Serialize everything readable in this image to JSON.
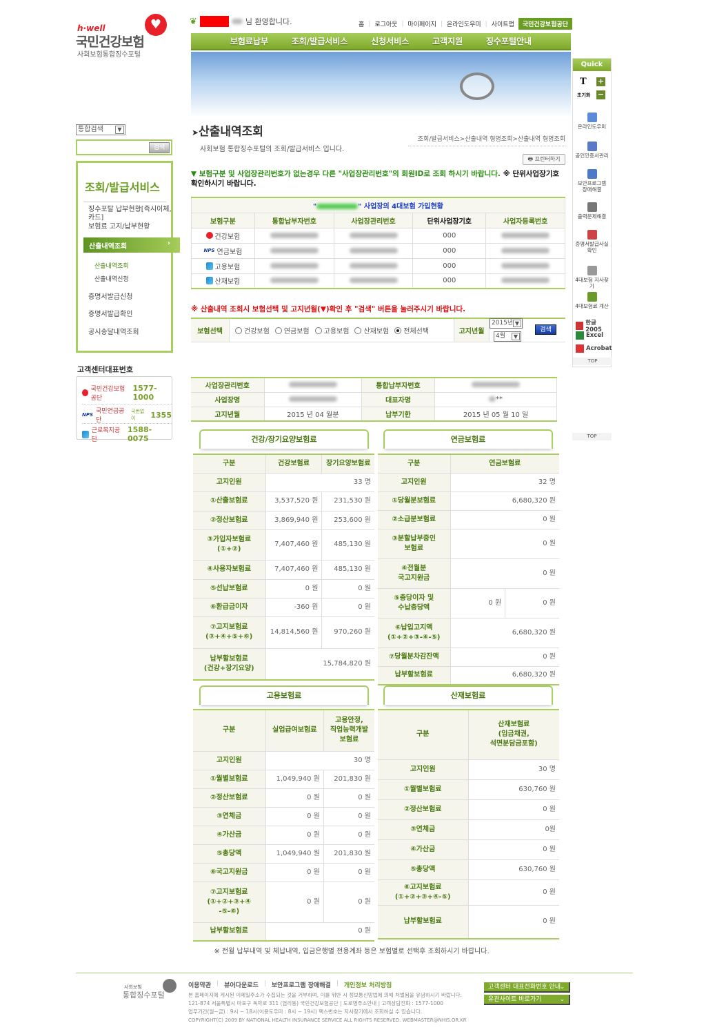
{
  "logo": {
    "hwell": "h·well",
    "main": "국민건강보험",
    "sub": "사회보험통합징수포털"
  },
  "header": {
    "welcome": "님 환영합니다.",
    "links": [
      "홈",
      "로그아웃",
      "마이페이지",
      "온라인도우미",
      "사이트맵"
    ],
    "nhis_link": "국민건강보험공단"
  },
  "nav": [
    "보험료납부",
    "조회/발급서비스",
    "신청서비스",
    "고객지원",
    "징수포털안내"
  ],
  "search": {
    "select": "통합검색",
    "input_value": "",
    "button": "검색"
  },
  "sidebar": {
    "title": "조회/발급서비스",
    "items": [
      "징수포탈 납부현황[즉시이체,\n카드]",
      "보험료 고지/납부현황"
    ],
    "active": "산출내역조회",
    "subitems": [
      "산출내역조회",
      "산출내역신청"
    ],
    "items2": [
      "증명서발급신청",
      "증명서발급확인",
      "공시송달내역조회"
    ]
  },
  "customer_center": {
    "title": "고객센터대표번호",
    "rows": [
      {
        "org": "국민건강보험공단",
        "prefix": "",
        "phone": "1577-1000",
        "icon": "nhis-heart-icon"
      },
      {
        "org": "국민연금공단",
        "prefix": "국번없이",
        "phone": "1355",
        "icon": "nps-logo-icon"
      },
      {
        "org": "근로복지공단",
        "prefix": "",
        "phone": "1588-0075",
        "icon": "kcomwel-logo-icon"
      }
    ]
  },
  "page": {
    "title": "산출내역조회",
    "subtitle": "사회보험 통합징수포털의 조회/발급서비스 입니다.",
    "breadcrumb": "조회/발급서비스>산출내역 형명조회>산출내역 형명조회",
    "print": "프린터하기",
    "notice_green": "▼ 보험구분 및 사업장관리번호가 없는경우 다른 \"사업장관리번호\"의 회원ID로 조회 하시기 바랍니다.",
    "notice_black": " ※ 단위사업장기호 확인하시기 바랍니다."
  },
  "enroll_table": {
    "caption": "사업장의 4대보험 가입현황",
    "headers": [
      "보험구분",
      "통합납부자번호",
      "사업장관리번호",
      "단위사업장기호",
      "사업자등록번호"
    ],
    "rows": [
      {
        "ins": "건강보험",
        "icon": "nhis-heart-icon",
        "unit": "000"
      },
      {
        "ins": "연금보험",
        "icon": "nps-logo-icon",
        "unit": "000"
      },
      {
        "ins": "고용보험",
        "icon": "kcomwel-logo-icon",
        "unit": "000"
      },
      {
        "ins": "산재보험",
        "icon": "kcomwel-logo-icon",
        "unit": "000"
      }
    ]
  },
  "query": {
    "red_note": "※ 산출내역 조회시 보험선택 및 고지년월(▼)확인 후 \"검색\" 버튼을 눌러주시기 바랍니다.",
    "ins_label": "보험선택",
    "options": [
      "건강보험",
      "연금보험",
      "고용보험",
      "산재보험",
      "전체선택"
    ],
    "selected": "전체선택",
    "period_label": "고지년월",
    "year": "2015년",
    "month": "4월",
    "search": "검색"
  },
  "info": {
    "rows": [
      [
        "사업장관리번호",
        "",
        "통합납부자번호",
        ""
      ],
      [
        "사업장명",
        "",
        "대표자명",
        "**"
      ],
      [
        "고지년월",
        "2015 년 04 월분",
        "납부기한",
        "2015 년 05 월 10 일"
      ]
    ]
  },
  "tables": [
    {
      "tab": "건강/장기요양보험료",
      "header": [
        "구분",
        "건강보험료",
        "장기요양보험료"
      ],
      "rows": [
        [
          "고지인원",
          "33 명"
        ],
        [
          "①산출보험료",
          "3,537,520 원",
          "231,530 원"
        ],
        [
          "②정산보험료",
          "3,869,940 원",
          "253,600 원"
        ],
        [
          "③가입자보험료\n(①+②)",
          "7,407,460 원",
          "485,130 원"
        ],
        [
          "④사용자보험료",
          "7,407,460 원",
          "485,130 원"
        ],
        [
          "⑤선납보험료",
          "0 원",
          "0 원"
        ],
        [
          "⑥환급금이자",
          "-360 원",
          "0 원"
        ],
        [
          "⑦고지보험료\n(③+④+⑤+⑥)",
          "14,814,560 원",
          "970,260 원"
        ],
        [
          "납부할보험료\n(건강+장기요양)",
          "15,784,820 원"
        ]
      ]
    },
    {
      "tab": "연금보험료",
      "header": [
        "구분",
        "연금보험료"
      ],
      "rows": [
        [
          "고지인원",
          "32 명"
        ],
        [
          "①당월분보험료",
          "6,680,320 원"
        ],
        [
          "②소급분보험료",
          "0 원"
        ],
        [
          "③분할납부중인\n보험료",
          "0 원"
        ],
        [
          "④전월분\n국고지원금",
          "0 원"
        ],
        [
          "⑤충당이자 및\n수납충당액",
          "0 원",
          "0 원"
        ],
        [
          "⑥납입고지액\n(①+②+③-④-⑤)",
          "6,680,320 원"
        ],
        [
          "⑦당월분차감잔액",
          "0 원"
        ],
        [
          "납부할보험료",
          "6,680,320 원"
        ]
      ]
    },
    {
      "tab": "고용보험료",
      "header": [
        "구분",
        "실업급여보험료",
        "고용안정,\n직업능력개발\n보험료"
      ],
      "rows": [
        [
          "고지인원",
          "30 명"
        ],
        [
          "①월별보험료",
          "1,049,940 원",
          "201,830 원"
        ],
        [
          "②정산보험료",
          "0 원",
          "0 원"
        ],
        [
          "③연체금",
          "0 원",
          "0 원"
        ],
        [
          "④가산금",
          "0 원",
          "0 원"
        ],
        [
          "⑤총당액",
          "1,049,940 원",
          "201,830 원"
        ],
        [
          "⑥국고지원금",
          "0 원",
          "0 원"
        ],
        [
          "⑦고지보험료\n(①+②+③+④\n-⑤-⑥)",
          "0 원",
          "0 원"
        ],
        [
          "납부할보험료",
          "0 원"
        ]
      ]
    },
    {
      "tab": "산재보험료",
      "header": [
        "구분",
        "산재보험료\n(임금채권,\n석면분담금포함)"
      ],
      "rows": [
        [
          "고지인원",
          "30 명"
        ],
        [
          "①월별보험료",
          "630,760 원"
        ],
        [
          "②정산보험료",
          "0 원"
        ],
        [
          "③연체금",
          "0원"
        ],
        [
          "④가산금",
          "0 원"
        ],
        [
          "⑤총당액",
          "630,760 원"
        ],
        [
          "⑥고지보험료\n(①+②+③+④-⑤)",
          "0 원"
        ],
        [
          "납부할보험료",
          "0 원"
        ]
      ]
    }
  ],
  "bottom_note": "※ 전월 납부내역 및 체납내역, 입금은행별 전용계좌 등은 보험별로 선택후 조회하시기 바랍니다.",
  "footer": {
    "logo_small": "사회보험",
    "logo_big": "통합징수포털",
    "links": [
      "이용약관",
      "뷰어다운로드",
      "보안프로그램 장애해결"
    ],
    "privacy": "개인정보 처리방침",
    "lines": [
      "본 홈페이지에 게시된 이메일주소가 수집되는 것을 거부하며, 이를 위반 시 정보통신망법에 의해 처벌됨을 유념하시기 바랍니다.",
      "121-874 서울특별시 마포구 독막로 311 (염리동) 국민건강보험공단 | 도로명주소안내 | 고객상담전화 : 1577-1000",
      "업무기간(월~금) : 9시 ~ 18시(이용도우미 : 8시 ~ 19시) 팩스번호는 지사찾기에서 조회하실 수 있습니다.",
      "COPYRIGHT(C) 2009 BY NATIONAL HEALTH INSURANCE SERVICE ALL RIGHTS RESERVED. WEBMASTER@NHIS.OR.KR"
    ],
    "btn_center": "고객센터 대표전화번호 안내",
    "btn_sites": "유관사이트 바로가기"
  },
  "quick": {
    "title": "Quick",
    "font_t": "T",
    "reset": "초기화",
    "items": [
      "온라인도우미",
      "공인인증서관리",
      "보안프로그램\n장애해결",
      "출력문제해결",
      "증명서발급사실\n확인",
      "4대보험 지사찾기",
      "4대보험료 계산"
    ],
    "files": [
      "한글2005",
      "Excel",
      "Acrobat"
    ],
    "top": "TOP"
  }
}
